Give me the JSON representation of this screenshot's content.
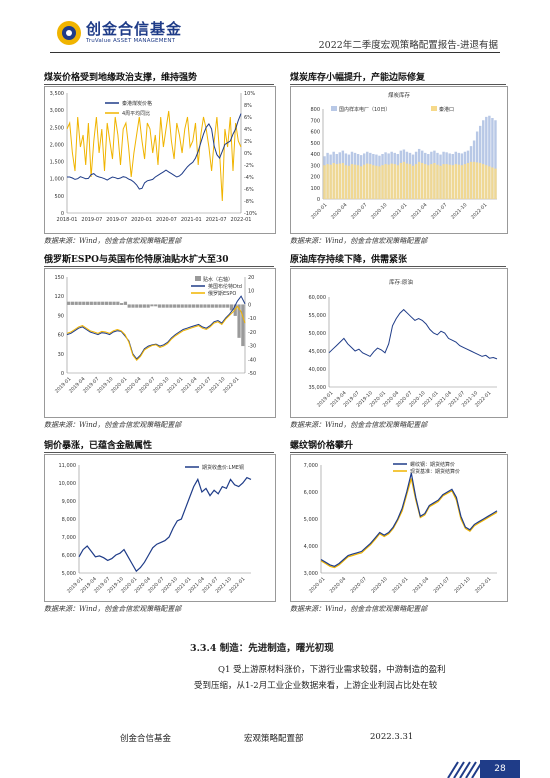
{
  "header": {
    "logo_cn": "创金合信基金",
    "logo_en": "TruValue ASSET MANAGEMENT",
    "title": "2022年二季度宏观策略配置报告-进退有据"
  },
  "charts_meta": [
    {
      "title": "煤炭价格受到地缘政治支撑，维持强势",
      "source": "数据来源：Wind，创金合信宏观策略配置部"
    },
    {
      "title": "煤炭库存小幅提升，产能边际修复",
      "source": "数据来源：Wind，创金合信宏观策略配置部"
    },
    {
      "title": "俄罗斯ESPO与英国布伦特原油贴水扩大至30",
      "source": "数据来源：Wind，创金合信宏观策略配置部"
    },
    {
      "title": "原油库存持续下降，供需紧张",
      "source": "数据来源：Wind，创金合信宏观策略配置部"
    },
    {
      "title": "铜价暴涨，已蕴含金融属性",
      "source": "数据来源：Wind，创金合信宏观策略配置部"
    },
    {
      "title": "螺纹钢价格攀升",
      "source": "数据来源：Wind，创金合信宏观策略配置部"
    }
  ],
  "chart_data": [
    {
      "type": "line",
      "series": [
        {
          "name": "秦港煤炭价格"
        },
        {
          "name": "4周平均同比"
        }
      ],
      "x_ticks": [
        "2018-01",
        "2019-07",
        "2019-07",
        "2020-01",
        "2020-07",
        "2021-01",
        "2021-07",
        "2022-01"
      ],
      "y_left_ticks": [
        "0",
        "500",
        "1,000",
        "1,500",
        "2,000",
        "2,500",
        "3,000",
        "3,500"
      ],
      "y_right_ticks": [
        "10%",
        "8%",
        "6%",
        "4%",
        "2%",
        "0%",
        "-2%",
        "-4%",
        "-6%",
        "-8%",
        "-10%"
      ],
      "ylim_left": [
        0,
        3500
      ],
      "ylim_right": [
        -10,
        10
      ],
      "values_left": [
        1050,
        1050,
        1020,
        980,
        1000,
        1060,
        1030,
        1000,
        1010,
        1120,
        1150,
        1080,
        1050,
        1030,
        1000,
        960,
        1010,
        1050,
        1030,
        1000,
        1020,
        1060,
        1040,
        990,
        960,
        900,
        820,
        700,
        720,
        880,
        940,
        960,
        980,
        1050,
        1100,
        1150,
        1200,
        1250,
        1200,
        1150,
        1100,
        1050,
        1080,
        1150,
        1250,
        1350,
        1420,
        1480,
        1600,
        1800,
        2050,
        2300,
        2500,
        2600,
        2450,
        1950,
        1700,
        1600,
        1800,
        2000,
        2050,
        2100,
        2300,
        2450,
        2700,
        2900
      ],
      "values_right": [
        4,
        5,
        0,
        -3,
        6,
        1,
        3,
        -2,
        5,
        -4,
        2,
        6,
        0,
        4,
        -3,
        5,
        2,
        -1,
        6,
        3,
        -2,
        4,
        5,
        1,
        -4,
        0,
        3,
        6,
        2,
        -1,
        5,
        4,
        0,
        3,
        -2,
        6,
        1,
        4,
        7,
        2,
        -1,
        5,
        3,
        0,
        4,
        6,
        1,
        2,
        5,
        -2,
        3,
        6,
        4,
        1,
        -3,
        2,
        6,
        0,
        -8,
        4,
        1,
        6,
        -3,
        5,
        2,
        1
      ]
    },
    {
      "type": "bar",
      "title": "煤炭库存",
      "series": [
        {
          "name": "国内样本电厂（10日）"
        },
        {
          "name": "秦港口"
        }
      ],
      "x_ticks": [
        "2020-01",
        "2020-04",
        "2020-07",
        "2020-10",
        "2021-01",
        "2021-04",
        "2021-07",
        "2021-10",
        "2022-01"
      ],
      "y_ticks": [
        "0",
        "100",
        "200",
        "300",
        "400",
        "500",
        "600",
        "700",
        "800"
      ],
      "ylim": [
        0,
        800
      ],
      "values_a": [
        380,
        410,
        395,
        420,
        400,
        415,
        430,
        405,
        395,
        420,
        410,
        400,
        390,
        405,
        420,
        410,
        400,
        395,
        385,
        400,
        415,
        405,
        420,
        410,
        400,
        430,
        440,
        420,
        410,
        395,
        420,
        445,
        430,
        410,
        400,
        420,
        430,
        410,
        395,
        420,
        415,
        405,
        400,
        420,
        410,
        405,
        420,
        430,
        470,
        520,
        600,
        650,
        700,
        730,
        740,
        720,
        700
      ],
      "values_b": [
        300,
        310,
        305,
        320,
        310,
        315,
        320,
        300,
        295,
        310,
        305,
        300,
        290,
        305,
        315,
        310,
        300,
        295,
        290,
        300,
        310,
        305,
        315,
        310,
        300,
        320,
        330,
        315,
        310,
        295,
        310,
        330,
        320,
        310,
        300,
        310,
        320,
        305,
        295,
        310,
        310,
        305,
        300,
        310,
        305,
        300,
        310,
        320,
        330,
        330,
        325,
        320,
        310,
        300,
        290,
        280,
        270
      ]
    },
    {
      "type": "line",
      "series": [
        {
          "name": "贴水（右轴）"
        },
        {
          "name": "英国布伦特Dtd"
        },
        {
          "name": "俄罗斯ESPO"
        }
      ],
      "x_ticks": [
        "2019-01",
        "2019-04",
        "2019-07",
        "2019-10",
        "2020-01",
        "2020-04",
        "2020-07",
        "2020-10",
        "2021-01",
        "2021-04",
        "2021-07",
        "2021-10",
        "2022-01"
      ],
      "y_left_ticks": [
        "0",
        "30",
        "60",
        "90",
        "120",
        "150"
      ],
      "y_right_ticks": [
        "20",
        "10",
        "0",
        "-10",
        "-20",
        "-30",
        "-40",
        "-50"
      ],
      "ylim_left": [
        0,
        150
      ],
      "ylim_right": [
        -50,
        20
      ],
      "values_left_brent": [
        60,
        62,
        66,
        70,
        72,
        68,
        64,
        62,
        60,
        63,
        62,
        60,
        64,
        66,
        65,
        58,
        50,
        30,
        22,
        28,
        38,
        42,
        44,
        45,
        42,
        44,
        48,
        55,
        60,
        64,
        68,
        70,
        72,
        74,
        76,
        72,
        70,
        74,
        80,
        82,
        78,
        86,
        92,
        100,
        112,
        120,
        108
      ],
      "values_left_espo": [
        62,
        64,
        68,
        72,
        74,
        70,
        66,
        64,
        62,
        65,
        64,
        62,
        66,
        68,
        66,
        60,
        48,
        28,
        20,
        26,
        36,
        40,
        43,
        44,
        40,
        42,
        46,
        53,
        58,
        62,
        66,
        68,
        70,
        72,
        74,
        70,
        68,
        72,
        78,
        80,
        76,
        84,
        90,
        96,
        104,
        96,
        78
      ]
    },
    {
      "type": "line",
      "title": "库存:原油",
      "x_ticks": [
        "2019-01",
        "2019-04",
        "2019-07",
        "2019-10",
        "2020-01",
        "2020-04",
        "2020-07",
        "2020-10",
        "2021-01",
        "2021-04",
        "2021-07",
        "2021-10",
        "2022-01"
      ],
      "y_ticks": [
        "35,000",
        "40,000",
        "45,000",
        "50,000",
        "55,000",
        "60,000"
      ],
      "ylim": [
        35000,
        60000
      ],
      "values": [
        44500,
        45500,
        46500,
        47500,
        48500,
        47000,
        46000,
        45000,
        45500,
        44500,
        44000,
        43500,
        44800,
        45800,
        45300,
        44500,
        47000,
        52000,
        54000,
        55500,
        56500,
        55500,
        54500,
        53500,
        54000,
        53500,
        52500,
        51000,
        50000,
        49500,
        50500,
        50000,
        48500,
        48000,
        47500,
        46500,
        46000,
        45500,
        45000,
        44500,
        44000,
        43500,
        43800,
        43000,
        43200,
        42800
      ]
    },
    {
      "type": "line",
      "series": [
        {
          "name": "期货收盘价:LME铜"
        }
      ],
      "x_ticks": [
        "2019-01",
        "2019-04",
        "2019-07",
        "2019-10",
        "2020-01",
        "2020-04",
        "2020-07",
        "2020-10",
        "2021-01",
        "2021-04",
        "2021-07",
        "2021-10",
        "2022-01"
      ],
      "y_ticks": [
        "5,000",
        "6,000",
        "7,000",
        "8,000",
        "9,000",
        "10,000",
        "11,000"
      ],
      "ylim": [
        5000,
        11000
      ],
      "values": [
        5900,
        6300,
        6500,
        6200,
        5900,
        5950,
        5850,
        5700,
        5800,
        6000,
        6100,
        6300,
        5900,
        5500,
        5100,
        5300,
        5600,
        6000,
        6400,
        6600,
        6700,
        6800,
        7000,
        7500,
        7900,
        8000,
        8600,
        9200,
        9800,
        10200,
        9500,
        9700,
        9300,
        9600,
        9400,
        9800,
        9700,
        10200,
        9900,
        9800,
        10000,
        10300,
        10200
      ]
    },
    {
      "type": "line",
      "series": [
        {
          "name": "螺纹钢：期货结算价"
        },
        {
          "name": "现货基准：期货结算价"
        }
      ],
      "x_ticks": [
        "2020-01",
        "2020-04",
        "2020-07",
        "2020-10",
        "2021-01",
        "2021-04",
        "2021-07",
        "2021-10",
        "2022-01"
      ],
      "y_ticks": [
        "3,000",
        "4,000",
        "5,000",
        "6,000",
        "7,000"
      ],
      "ylim": [
        3000,
        7000
      ],
      "values_a": [
        3500,
        3400,
        3300,
        3250,
        3350,
        3500,
        3650,
        3700,
        3750,
        3800,
        3950,
        4100,
        4300,
        4500,
        4400,
        4500,
        4700,
        5000,
        5400,
        6000,
        6700,
        5800,
        5100,
        5200,
        5500,
        5600,
        5700,
        5900,
        6000,
        6100,
        5800,
        5100,
        4700,
        4600,
        4800,
        4900,
        5000,
        5100,
        5200,
        5300
      ],
      "values_b": [
        3450,
        3350,
        3250,
        3200,
        3300,
        3450,
        3600,
        3650,
        3700,
        3750,
        3900,
        4050,
        4250,
        4450,
        4350,
        4450,
        4650,
        4950,
        5300,
        5900,
        6500,
        5700,
        5050,
        5150,
        5450,
        5550,
        5650,
        5850,
        5950,
        6050,
        5700,
        5000,
        4650,
        4550,
        4750,
        4850,
        4950,
        5050,
        5150,
        5250
      ]
    }
  ],
  "section": {
    "heading": "3.3.4 制造：先进制造，曙光初现",
    "para_lines": [
      "Q1 受上游原材料涨价，下游行业需求较弱，中游制造的盈利",
      "受到压缩，从1-2月工业企业数据来看，上游企业利润占比处在较"
    ]
  },
  "footer": {
    "company": "创金合信基金",
    "dept": "宏观策略配置部",
    "date": "2022.3.31",
    "page": "28"
  },
  "colors": {
    "brand": "#1f3c88",
    "series_blue": "#1f3c88",
    "series_yellow": "#f0b400",
    "bar_blue": "#b8c8e6",
    "bar_yellow": "#f6d98a",
    "bar_gray": "#9a9a9a"
  }
}
